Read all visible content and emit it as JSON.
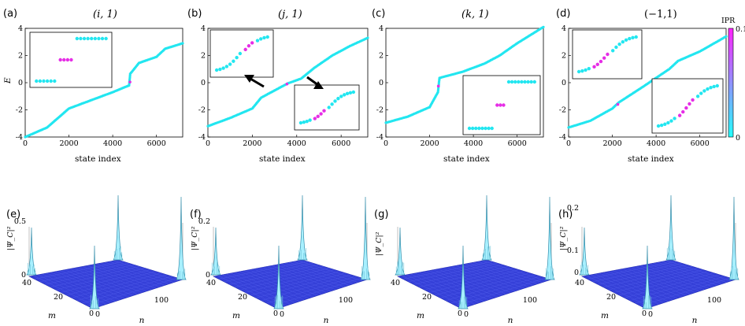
{
  "chart_data": {
    "top_panels": [
      {
        "label": "(a)",
        "title": "(i, 1)",
        "type": "scatter",
        "xlabel": "state index",
        "ylabel": "E",
        "xlim": [
          0,
          7200
        ],
        "ylim": [
          -4,
          4
        ],
        "xticks": [
          "0",
          "2000",
          "4000",
          "6000"
        ],
        "yticks": [
          "-4",
          "-2",
          "0",
          "2",
          "4"
        ],
        "curve": [
          [
            0,
            -4
          ],
          [
            1000,
            -3.3
          ],
          [
            2000,
            -1.9
          ],
          [
            2500,
            -1.6
          ],
          [
            3000,
            -1.3
          ],
          [
            4000,
            -0.7
          ],
          [
            4750,
            -0.2
          ],
          [
            4800,
            0.65
          ],
          [
            5200,
            1.45
          ],
          [
            6000,
            1.9
          ],
          [
            6400,
            2.5
          ],
          [
            7200,
            2.9
          ]
        ],
        "edge_states": [
          [
            4790,
            0.05
          ]
        ],
        "insets": [
          {
            "left_cyan": 6,
            "magenta": 4,
            "right_cyan": 9
          }
        ]
      },
      {
        "label": "(b)",
        "title": "(j, 1)",
        "type": "scatter",
        "xlabel": "state index",
        "ylabel": "",
        "xlim": [
          0,
          7200
        ],
        "ylim": [
          -4,
          4
        ],
        "xticks": [
          "0",
          "2000",
          "4000",
          "6000"
        ],
        "yticks": [
          "-4",
          "-2",
          "0",
          "2",
          "4"
        ],
        "curve": [
          [
            0,
            -3.2
          ],
          [
            1000,
            -2.6
          ],
          [
            2000,
            -1.9
          ],
          [
            2400,
            -1.1
          ],
          [
            3200,
            -0.4
          ],
          [
            3600,
            -0.05
          ],
          [
            4200,
            0.3
          ],
          [
            4800,
            1.1
          ],
          [
            5600,
            2.0
          ],
          [
            6400,
            2.7
          ],
          [
            7200,
            3.3
          ]
        ],
        "edge_states": [
          [
            3560,
            -0.1
          ]
        ],
        "insets": [
          {
            "left_cyan": 8,
            "magenta": 3,
            "right_cyan": 4
          },
          {
            "left_cyan": 4,
            "magenta": 4,
            "right_cyan": 9
          }
        ]
      },
      {
        "label": "(c)",
        "title": "(k, 1)",
        "type": "scatter",
        "xlabel": "state index",
        "ylabel": "",
        "xlim": [
          0,
          7200
        ],
        "ylim": [
          -4,
          4
        ],
        "xticks": [
          "0",
          "2000",
          "4000",
          "6000"
        ],
        "yticks": [
          "-4",
          "-2",
          "0",
          "2",
          "4"
        ],
        "curve": [
          [
            0,
            -2.95
          ],
          [
            1000,
            -2.5
          ],
          [
            2000,
            -1.8
          ],
          [
            2380,
            -0.7
          ],
          [
            2450,
            0.35
          ],
          [
            3500,
            0.8
          ],
          [
            4500,
            1.4
          ],
          [
            5200,
            2.0
          ],
          [
            6000,
            2.9
          ],
          [
            7200,
            4.1
          ]
        ],
        "edge_states": [
          [
            2400,
            -0.25
          ]
        ],
        "insets": [
          {
            "left_cyan": 8,
            "magenta": 3,
            "right_cyan": 9
          }
        ]
      },
      {
        "label": "(d)",
        "title": "(−1,1)",
        "type": "scatter",
        "xlabel": "state index",
        "ylabel": "",
        "xlim": [
          0,
          7200
        ],
        "ylim": [
          -4,
          4
        ],
        "xticks": [
          "0",
          "2000",
          "4000",
          "6000"
        ],
        "yticks": [
          "-4",
          "-2",
          "0",
          "2",
          "4"
        ],
        "curve": [
          [
            0,
            -3.3
          ],
          [
            1000,
            -2.8
          ],
          [
            2000,
            -1.9
          ],
          [
            2300,
            -1.45
          ],
          [
            3400,
            -0.3
          ],
          [
            4600,
            1.0
          ],
          [
            5000,
            1.6
          ],
          [
            6000,
            2.3
          ],
          [
            7200,
            3.4
          ]
        ],
        "edge_states": [
          [
            2250,
            -1.6
          ]
        ],
        "insets": [
          {
            "left_cyan": 4,
            "magenta": 5,
            "right_cyan": 8
          },
          {
            "left_cyan": 6,
            "magenta": 5,
            "right_cyan": 7
          }
        ],
        "colorbar": {
          "label": "IPR",
          "min": "0",
          "max": "0.1",
          "colors": [
            "#22ffff",
            "#ff22ff"
          ]
        }
      }
    ],
    "bottom_panels": [
      {
        "label": "(e)",
        "type": "surface",
        "zlabel": "|Ψ_C|²",
        "zticks": [
          "0",
          "0.5"
        ],
        "mlabel": "m",
        "nlabel": "n",
        "mticks": [
          "0",
          "20",
          "40"
        ],
        "nticks": [
          "0",
          "100"
        ]
      },
      {
        "label": "(f)",
        "type": "surface",
        "zlabel": "|Ψ_C|²",
        "zticks": [
          "0",
          "0.2"
        ],
        "mlabel": "m",
        "nlabel": "n",
        "mticks": [
          "0",
          "20",
          "40"
        ],
        "nticks": [
          "0",
          "100"
        ]
      },
      {
        "label": "(g)",
        "type": "surface",
        "zlabel": "|Ψ_C|²",
        "zticks": [],
        "mlabel": "m",
        "nlabel": "n",
        "mticks": [
          "0",
          "20",
          "40"
        ],
        "nticks": [
          "0",
          "100"
        ]
      },
      {
        "label": "(h)",
        "type": "surface",
        "zlabel": "|Ψ_C|²",
        "zticks": [
          "0",
          "0.1",
          "0.2"
        ],
        "mlabel": "m",
        "nlabel": "n",
        "mticks": [
          "0",
          "20",
          "40"
        ],
        "nticks": [
          "0",
          "100"
        ]
      }
    ]
  }
}
